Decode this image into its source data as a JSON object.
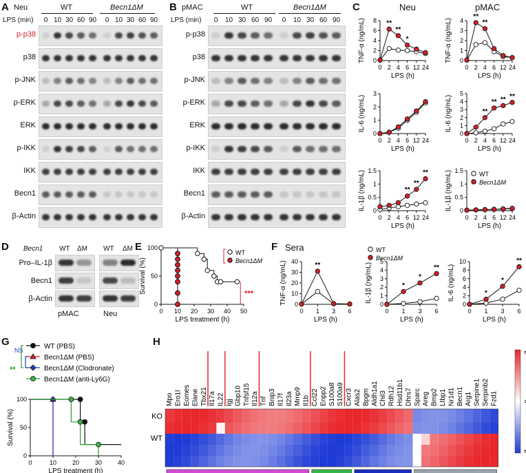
{
  "panels": {
    "A": {
      "letter": "A",
      "cell": "Neu",
      "groups": [
        "WT",
        "Becn1ΔM"
      ],
      "lps_label": "LPS (min)",
      "timepoints": [
        "0",
        "10",
        "30",
        "60",
        "90",
        "0",
        "10",
        "30",
        "60",
        "90"
      ],
      "blots": [
        "p-p38",
        "p38",
        "p-JNK",
        "p-ERK",
        "ERK",
        "p-IKK",
        "IKK",
        "Becn1",
        "β-Actin"
      ]
    },
    "B": {
      "letter": "B",
      "cell": "pMAC",
      "groups": [
        "WT",
        "Becn1ΔM"
      ],
      "lps_label": "LPS (min)",
      "timepoints": [
        "0",
        "10",
        "30",
        "60",
        "90",
        "0",
        "10",
        "30",
        "60",
        "90"
      ],
      "blots": [
        "p-p38",
        "p38",
        "p-JNK",
        "p-ERK",
        "ERK",
        "p-IKK",
        "IKK",
        "Becn1",
        "β-Actin"
      ]
    },
    "C": {
      "letter": "C",
      "col1": "Neu",
      "col2": "pMAC",
      "xlabel": "LPS (h)",
      "legend": [
        "WT",
        "Becn1ΔM"
      ]
    },
    "D": {
      "letter": "D",
      "header": "Becn1",
      "lanes": [
        "WT",
        "ΔM",
        "WT",
        "ΔM"
      ],
      "blots": [
        "Pro–IL-1β",
        "Becn1",
        "β-Actin"
      ],
      "bottom": [
        "pMAC",
        "Neu"
      ]
    },
    "E": {
      "letter": "E",
      "ylabel": "Survival (%)",
      "xlabel": "LPS treatment (h)",
      "legend": [
        "WT",
        "Becn1ΔM"
      ],
      "sig": "***"
    },
    "F": {
      "letter": "F",
      "title": "Sera",
      "xlabel": "LPS (h)",
      "legend": [
        "WT",
        "Becn1ΔM"
      ]
    },
    "G": {
      "letter": "G",
      "ylabel": "Survival (%)",
      "xlabel": "LPS treatment (h)",
      "legend": [
        "WT (PBS)",
        "Becn1ΔM (PBS)",
        "Becn1ΔM (Clodronate)",
        "Becn1ΔM (anti-Ly6G)"
      ],
      "ns": "NS",
      "sig": "**"
    },
    "H": {
      "letter": "H",
      "rows": [
        "KO",
        "WT"
      ],
      "genes": [
        "Mpo",
        "Ero1l",
        "Eomes",
        "Elane",
        "Tbx21",
        "Il17a",
        "IL22",
        "Igj",
        "Gbp10",
        "Tnfsf15",
        "Il12a",
        "Tnf",
        "Bnip3",
        "Il17f",
        "Il23a",
        "Mmp9",
        "Il1b",
        "Ccl22",
        "Enpp2",
        "S100a8",
        "S100a9",
        "Cxcr3",
        "Alas2",
        "Bpgm",
        "Aldh1a1",
        "Chil3",
        "Rdh12",
        "Hsd11b1",
        "Dhrs7",
        "Sparc",
        "Areg",
        "Bmp2",
        "Ltbp1",
        "Nr1d1",
        "Becn1",
        "Arg1",
        "Serpine1",
        "Serpinb2",
        "Fzd1"
      ],
      "scale": [
        "2",
        "0",
        "-2"
      ],
      "colors": {
        "high": "#e8262b",
        "low": "#1e3bd6",
        "mid": "#ffffff"
      }
    }
  },
  "chart_data": [
    {
      "type": "line",
      "id": "C-Neu-TNF",
      "ylabel": "TNF-α (ng/mL)",
      "x": [
        0,
        2,
        4,
        6,
        12,
        24
      ],
      "ylim": [
        0,
        8
      ],
      "yticks": [
        0,
        2,
        4,
        6,
        8
      ],
      "series": [
        {
          "name": "WT",
          "values": [
            0.1,
            2.4,
            2.1,
            2.0,
            1.8,
            1.4
          ]
        },
        {
          "name": "Becn1ΔM",
          "values": [
            0.1,
            6.3,
            5.0,
            3.1,
            2.3,
            1.6
          ]
        }
      ],
      "annotations": [
        "**",
        "**",
        "*"
      ]
    },
    {
      "type": "line",
      "id": "C-pMAC-TNF",
      "ylabel": "TNF-α (ng/mL)",
      "x": [
        0,
        2,
        4,
        6,
        12,
        24
      ],
      "ylim": [
        0,
        4
      ],
      "yticks": [
        0,
        1,
        2,
        3,
        4
      ],
      "series": [
        {
          "name": "WT",
          "values": [
            0.05,
            1.6,
            1.8,
            0.9,
            0.4,
            0.3
          ]
        },
        {
          "name": "Becn1ΔM",
          "values": [
            0.05,
            3.8,
            3.2,
            1.2,
            0.5,
            0.3
          ]
        }
      ],
      "annotations": [
        "**",
        "**"
      ]
    },
    {
      "type": "line",
      "id": "C-Neu-IL6",
      "ylabel": "IL-6 (ng/mL)",
      "x": [
        0,
        2,
        4,
        6,
        12,
        24
      ],
      "ylim": [
        0,
        3
      ],
      "yticks": [
        0,
        1,
        2,
        3
      ],
      "series": [
        {
          "name": "WT",
          "values": [
            0,
            0.1,
            0.4,
            1.0,
            1.6,
            2.3
          ]
        },
        {
          "name": "Becn1ΔM",
          "values": [
            0,
            0.1,
            0.5,
            1.1,
            1.7,
            2.4
          ]
        }
      ]
    },
    {
      "type": "line",
      "id": "C-pMAC-IL6",
      "ylabel": "IL-6 (ng/mL)",
      "x": [
        0,
        2,
        4,
        6,
        12,
        24
      ],
      "ylim": [
        0,
        5
      ],
      "yticks": [
        0,
        1,
        2,
        3,
        4,
        5
      ],
      "series": [
        {
          "name": "WT",
          "values": [
            0,
            0.1,
            0.3,
            0.6,
            1.2,
            1.5
          ]
        },
        {
          "name": "Becn1ΔM",
          "values": [
            0,
            0.8,
            2.0,
            3.2,
            3.5,
            3.9
          ]
        }
      ],
      "annotations": [
        "**",
        "**",
        "**",
        "**"
      ]
    },
    {
      "type": "line",
      "id": "C-Neu-IL1b",
      "ylabel": "IL-1β (ng/mL)",
      "x": [
        0,
        2,
        4,
        6,
        12,
        24
      ],
      "ylim": [
        0,
        1.5
      ],
      "yticks": [
        0.0,
        0.5,
        1.0,
        1.5
      ],
      "series": [
        {
          "name": "WT",
          "values": [
            0.05,
            0.1,
            0.15,
            0.2,
            0.25,
            0.3
          ]
        },
        {
          "name": "Becn1ΔM",
          "values": [
            0.15,
            0.2,
            0.3,
            0.55,
            0.8,
            1.2
          ]
        }
      ],
      "annotations": [
        "**",
        "**",
        "**"
      ]
    },
    {
      "type": "line",
      "id": "C-pMAC-IL1b",
      "ylabel": "IL-1β (ng/mL)",
      "x": [
        0,
        2,
        4,
        6,
        12,
        24
      ],
      "ylim": [
        0,
        1.5
      ],
      "yticks": [
        0.0,
        0.5,
        1.0,
        1.5
      ],
      "series": [
        {
          "name": "WT",
          "values": [
            0.02,
            0.03,
            0.04,
            0.05,
            0.06,
            0.08
          ]
        },
        {
          "name": "Becn1ΔM",
          "values": [
            0.02,
            0.03,
            0.04,
            0.05,
            0.07,
            0.09
          ]
        }
      ]
    },
    {
      "type": "line",
      "id": "E-survival",
      "ylabel": "Survival (%)",
      "xlabel": "LPS treatment (h)",
      "xlim": [
        0,
        50
      ],
      "ylim": [
        0,
        100
      ],
      "series": [
        {
          "name": "WT",
          "x": [
            0,
            22,
            26,
            28,
            32,
            34,
            36,
            46
          ],
          "values": [
            100,
            90,
            80,
            60,
            50,
            40,
            40,
            40
          ]
        },
        {
          "name": "Becn1ΔM",
          "x": [
            10,
            10,
            10,
            10,
            10,
            10,
            10,
            10
          ],
          "values": [
            90,
            80,
            70,
            60,
            50,
            40,
            20,
            0
          ]
        }
      ]
    },
    {
      "type": "line",
      "id": "F-TNF",
      "ylabel": "TNF-α (ng/mL)",
      "x": [
        0,
        1,
        3,
        6
      ],
      "ylim": [
        0,
        40
      ],
      "yticks": [
        0,
        10,
        20,
        30,
        40
      ],
      "series": [
        {
          "name": "WT",
          "values": [
            0.2,
            12,
            0.5,
            0.3
          ]
        },
        {
          "name": "Becn1ΔM",
          "values": [
            0.2,
            31,
            0.6,
            0.3
          ]
        }
      ],
      "annotations": [
        "**"
      ]
    },
    {
      "type": "line",
      "id": "F-IL1b",
      "ylabel": "IL-1β (ng/mL)",
      "x": [
        0,
        1,
        3,
        6
      ],
      "ylim": [
        0,
        5
      ],
      "yticks": [
        0,
        1,
        2,
        3,
        4,
        5
      ],
      "series": [
        {
          "name": "WT",
          "values": [
            0,
            0.1,
            0.3,
            0.7
          ]
        },
        {
          "name": "Becn1ΔM",
          "values": [
            0,
            1.5,
            2.5,
            3.6
          ]
        }
      ],
      "annotations": [
        "*",
        "*",
        "**"
      ]
    },
    {
      "type": "line",
      "id": "F-IL6",
      "ylabel": "IL-6 (ng/mL)",
      "x": [
        0,
        1,
        3,
        6
      ],
      "ylim": [
        0,
        10
      ],
      "yticks": [
        0,
        2,
        4,
        6,
        8,
        10
      ],
      "series": [
        {
          "name": "WT",
          "values": [
            0,
            0.3,
            1.2,
            3.3
          ]
        },
        {
          "name": "Becn1ΔM",
          "values": [
            0,
            1.2,
            4.2,
            8.8
          ]
        }
      ],
      "annotations": [
        "*",
        "*",
        "**"
      ]
    },
    {
      "type": "line",
      "id": "G-survival",
      "ylabel": "Survival (%)",
      "xlabel": "LPS treatment (h)",
      "xlim": [
        0,
        40
      ],
      "ylim": [
        0,
        100
      ],
      "series": [
        {
          "name": "WT (PBS)",
          "x": [
            0,
            22,
            22,
            24,
            24,
            40
          ],
          "values": [
            100,
            100,
            60,
            60,
            20,
            20
          ]
        },
        {
          "name": "Becn1ΔM (PBS)",
          "x": [
            0,
            10,
            10
          ],
          "values": [
            100,
            100,
            0
          ]
        },
        {
          "name": "Becn1ΔM (Clodronate)",
          "x": [
            0,
            10,
            10
          ],
          "values": [
            100,
            100,
            0
          ]
        },
        {
          "name": "Becn1ΔM (anti-Ly6G)",
          "x": [
            0,
            18,
            18,
            22,
            22,
            30,
            30
          ],
          "values": [
            100,
            100,
            60,
            60,
            20,
            20,
            0
          ]
        }
      ]
    }
  ]
}
